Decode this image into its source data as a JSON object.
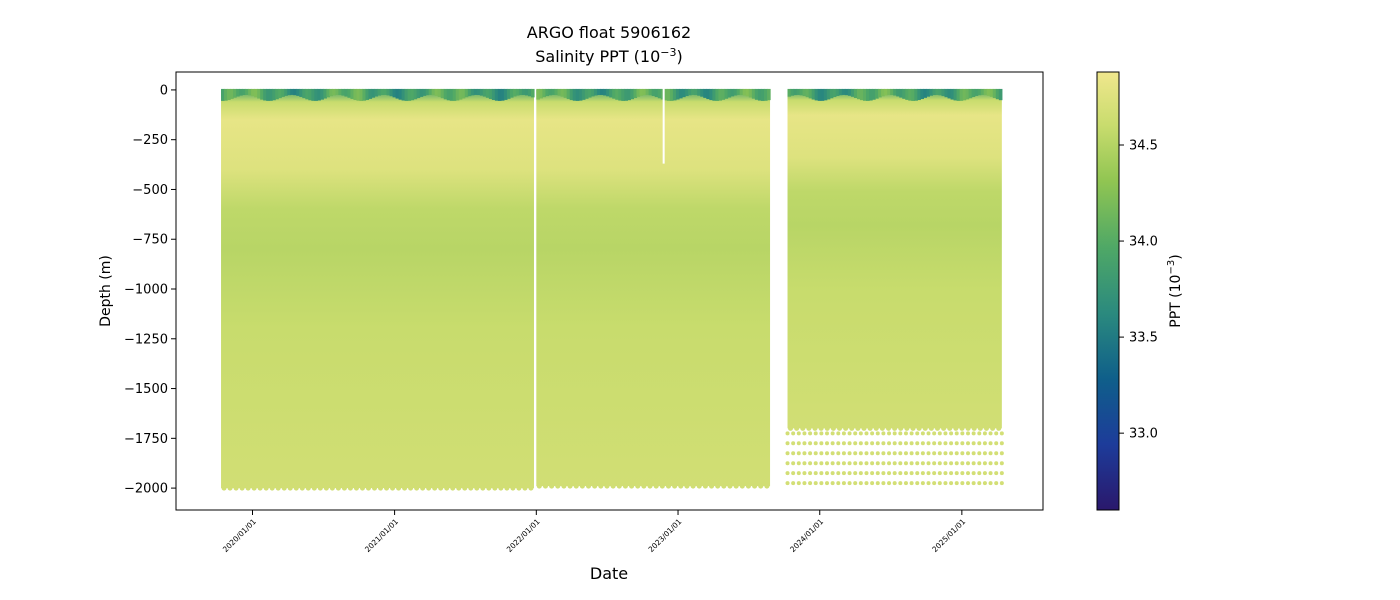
{
  "chart_data": {
    "type": "heatmap",
    "title": "ARGO float 5906162",
    "subtitle_prefix": "Salinity PPT (10",
    "subtitle_exp": "−3",
    "subtitle_suffix": ")",
    "xlabel": "Date",
    "ylabel": "Depth (m)",
    "x_ticks": [
      "2020/01/01",
      "2021/01/01",
      "2022/01/01",
      "2023/01/01",
      "2024/01/01",
      "2025/01/01"
    ],
    "x_range": [
      "2019-06-18",
      "2025-07-29"
    ],
    "ylim": [
      -2110,
      90
    ],
    "y_ticks": [
      0,
      -250,
      -500,
      -750,
      -1000,
      -1250,
      -1500,
      -1750,
      -2000
    ],
    "y_tick_labels": [
      "0",
      "−250",
      "−500",
      "−750",
      "−1000",
      "−1250",
      "−1500",
      "−1750",
      "−2000"
    ],
    "data_segments": [
      {
        "start": "2019-10-12",
        "end": "2021-12-26",
        "bottom_depth": -2000
      },
      {
        "start": "2022-01-01",
        "end": "2023-08-26",
        "bottom_depth": -1990
      },
      {
        "start": "2023-10-10",
        "end": "2025-04-14",
        "bottom_depth": -1700
      }
    ],
    "gaps": [
      {
        "date": "2022-11-25",
        "top_depth": 0,
        "bottom_depth": -370
      }
    ],
    "sparse_deep_levels": {
      "start": "2023-10-10",
      "end": "2025-04-14",
      "depths": [
        -1725,
        -1775,
        -1825,
        -1875,
        -1925,
        -1975
      ]
    },
    "salinity_profile": [
      {
        "depth": 0,
        "value": 33.9
      },
      {
        "depth": -60,
        "value": 34.6
      },
      {
        "depth": -150,
        "value": 34.82
      },
      {
        "depth": -400,
        "value": 34.75
      },
      {
        "depth": -600,
        "value": 34.55
      },
      {
        "depth": -800,
        "value": 34.52
      },
      {
        "depth": -1200,
        "value": 34.6
      },
      {
        "depth": -2000,
        "value": 34.66
      }
    ],
    "colorbar": {
      "label_prefix": "PPT (10",
      "label_exp": "−3",
      "label_suffix": ")",
      "range": [
        32.6,
        34.88
      ],
      "ticks": [
        33.0,
        33.5,
        34.0,
        34.5
      ],
      "tick_labels": [
        "33.0",
        "33.5",
        "34.0",
        "34.5"
      ],
      "colormap": "haline",
      "stops": [
        {
          "pos": 0.0,
          "color": "#2a186c"
        },
        {
          "pos": 0.15,
          "color": "#1d3c9a"
        },
        {
          "pos": 0.3,
          "color": "#0f5f8a"
        },
        {
          "pos": 0.45,
          "color": "#2b8a7e"
        },
        {
          "pos": 0.6,
          "color": "#4fa866"
        },
        {
          "pos": 0.75,
          "color": "#90c552"
        },
        {
          "pos": 0.88,
          "color": "#c9dc6e"
        },
        {
          "pos": 1.0,
          "color": "#f0e78d"
        }
      ]
    }
  }
}
